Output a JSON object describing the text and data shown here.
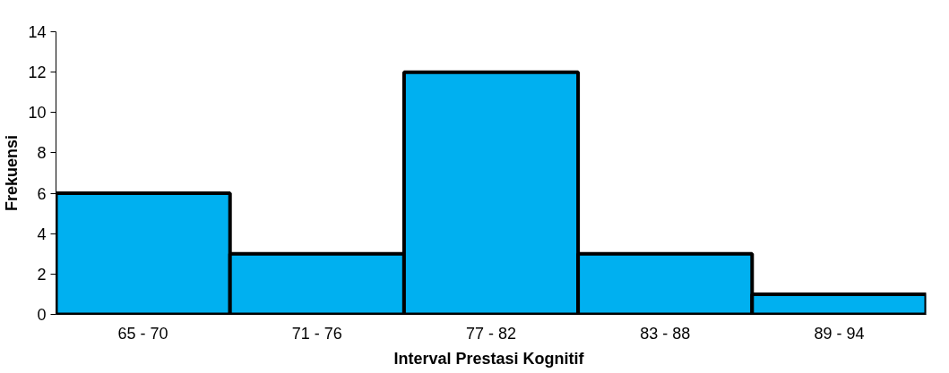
{
  "chart_data": {
    "type": "bar",
    "xlabel": "Interval  Prestasi Kognitif",
    "ylabel": "Frekuensi",
    "categories": [
      "65 - 70",
      "71 - 76",
      "77 - 82",
      "83 - 88",
      "89 - 94"
    ],
    "values": [
      6,
      3,
      12,
      3,
      1
    ],
    "color": "#00b0f0",
    "ylim": [
      0,
      14
    ],
    "yticks": [
      0,
      2,
      4,
      6,
      8,
      10,
      12,
      14
    ],
    "grid": false
  }
}
